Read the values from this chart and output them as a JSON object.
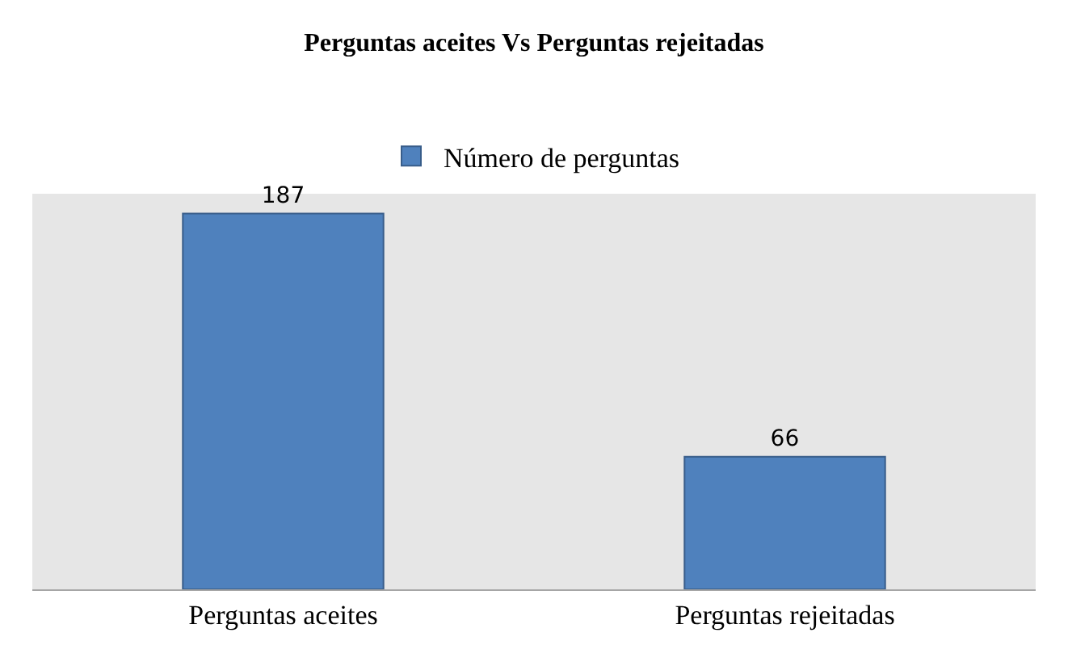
{
  "chart_data": {
    "type": "bar",
    "title": "Perguntas aceites Vs Perguntas rejeitadas",
    "categories": [
      "Perguntas aceites",
      "Perguntas rejeitadas"
    ],
    "series": [
      {
        "name": "Número de perguntas",
        "color": "#4f81bd",
        "values": [
          187,
          66
        ]
      }
    ],
    "data_labels": true,
    "legend": "top",
    "grid": false
  }
}
